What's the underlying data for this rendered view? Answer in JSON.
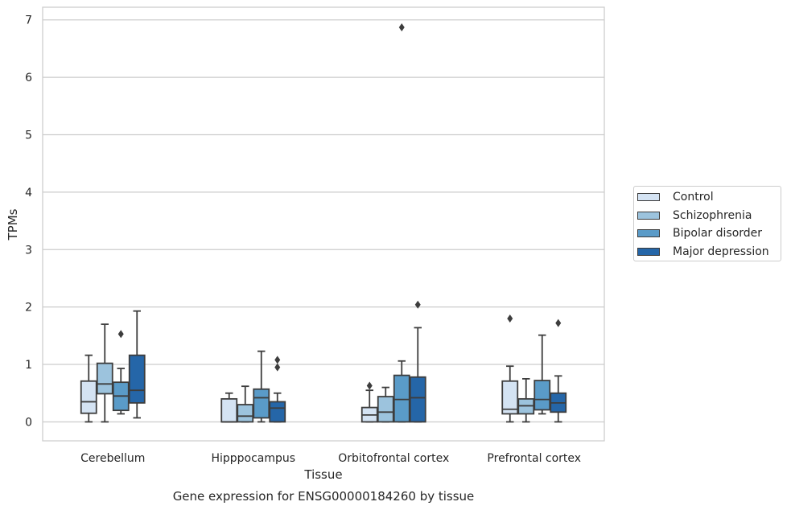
{
  "chart_data": {
    "type": "box",
    "title": "Gene expression for ENSG00000184260 by tissue",
    "xlabel": "Tissue",
    "ylabel": "TPMs",
    "ylim": [
      -0.33,
      7.22
    ],
    "yticks": [
      0,
      1,
      2,
      3,
      4,
      5,
      6,
      7
    ],
    "grid": "horizontal",
    "legend_position": "right",
    "categories": [
      "Cerebellum",
      "Hipppocampus",
      "Orbitofrontal cortex",
      "Prefrontal cortex"
    ],
    "series": [
      {
        "name": "Control",
        "color": "#d4e3f3",
        "boxes": [
          {
            "whisker_low": 0.0,
            "q1": 0.15,
            "median": 0.35,
            "q3": 0.71,
            "whisker_high": 1.16,
            "outliers": []
          },
          {
            "whisker_low": 0.0,
            "q1": 0.0,
            "median": 0.0,
            "q3": 0.4,
            "whisker_high": 0.5,
            "outliers": []
          },
          {
            "whisker_low": 0.0,
            "q1": 0.0,
            "median": 0.12,
            "q3": 0.25,
            "whisker_high": 0.55,
            "outliers": [
              0.63
            ]
          },
          {
            "whisker_low": 0.0,
            "q1": 0.14,
            "median": 0.22,
            "q3": 0.71,
            "whisker_high": 0.97,
            "outliers": [
              1.8
            ]
          }
        ]
      },
      {
        "name": "Schizophrenia",
        "color": "#9cc3dd",
        "boxes": [
          {
            "whisker_low": 0.0,
            "q1": 0.49,
            "median": 0.66,
            "q3": 1.02,
            "whisker_high": 1.7,
            "outliers": []
          },
          {
            "whisker_low": 0.0,
            "q1": 0.0,
            "median": 0.1,
            "q3": 0.3,
            "whisker_high": 0.62,
            "outliers": []
          },
          {
            "whisker_low": 0.0,
            "q1": 0.0,
            "median": 0.17,
            "q3": 0.44,
            "whisker_high": 0.6,
            "outliers": []
          },
          {
            "whisker_low": 0.0,
            "q1": 0.14,
            "median": 0.28,
            "q3": 0.4,
            "whisker_high": 0.75,
            "outliers": []
          }
        ]
      },
      {
        "name": "Bipolar disorder",
        "color": "#5a9bc8",
        "boxes": [
          {
            "whisker_low": 0.14,
            "q1": 0.2,
            "median": 0.45,
            "q3": 0.69,
            "whisker_high": 0.93,
            "outliers": [
              1.53
            ]
          },
          {
            "whisker_low": 0.0,
            "q1": 0.07,
            "median": 0.42,
            "q3": 0.57,
            "whisker_high": 1.23,
            "outliers": []
          },
          {
            "whisker_low": 0.0,
            "q1": 0.0,
            "median": 0.39,
            "q3": 0.81,
            "whisker_high": 1.06,
            "outliers": [
              6.87
            ]
          },
          {
            "whisker_low": 0.14,
            "q1": 0.21,
            "median": 0.39,
            "q3": 0.72,
            "whisker_high": 1.51,
            "outliers": []
          }
        ]
      },
      {
        "name": "Major depression",
        "color": "#2566a8",
        "boxes": [
          {
            "whisker_low": 0.07,
            "q1": 0.33,
            "median": 0.55,
            "q3": 1.16,
            "whisker_high": 1.93,
            "outliers": []
          },
          {
            "whisker_low": 0.0,
            "q1": 0.0,
            "median": 0.24,
            "q3": 0.35,
            "whisker_high": 0.5,
            "outliers": [
              0.95,
              1.08
            ]
          },
          {
            "whisker_low": 0.0,
            "q1": 0.0,
            "median": 0.42,
            "q3": 0.78,
            "whisker_high": 1.64,
            "outliers": [
              2.04
            ]
          },
          {
            "whisker_low": 0.0,
            "q1": 0.17,
            "median": 0.33,
            "q3": 0.5,
            "whisker_high": 0.8,
            "outliers": [
              1.72
            ]
          }
        ]
      }
    ]
  }
}
